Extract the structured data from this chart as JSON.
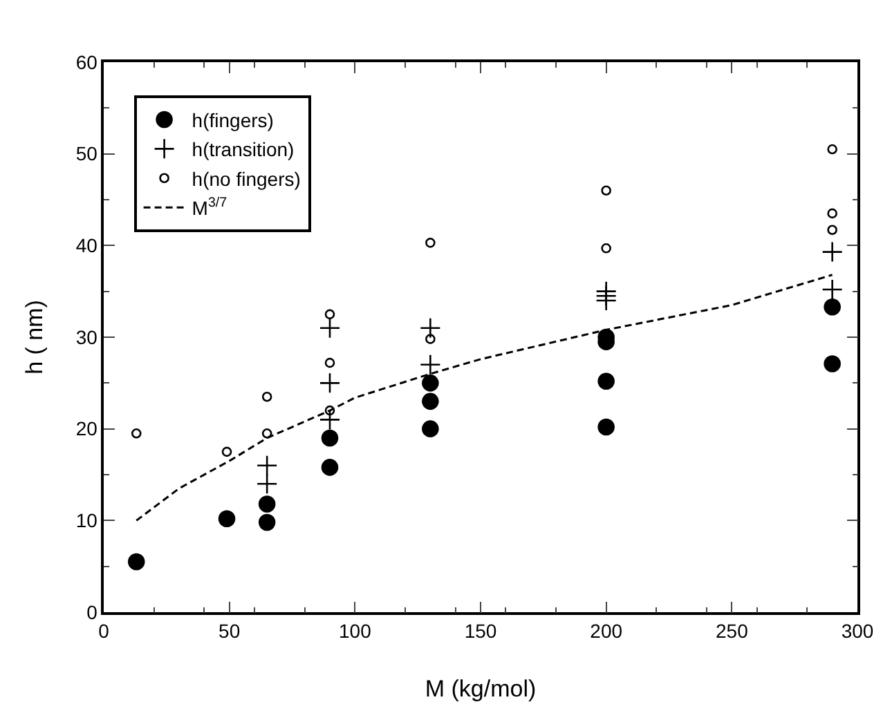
{
  "chart_data": {
    "type": "scatter",
    "xlabel": "M (kg/mol)",
    "ylabel": "h ( nm)",
    "xlim": [
      0,
      300
    ],
    "xticks": [
      0,
      50,
      100,
      150,
      200,
      250,
      300
    ],
    "ylim": [
      0,
      60
    ],
    "yticks": [
      0,
      10,
      20,
      30,
      40,
      50,
      60
    ],
    "grid": false,
    "legend": "top left",
    "series": [
      {
        "name": "h(fingers)",
        "marker": "circle",
        "color": "#000000",
        "x": [
          13,
          49,
          65,
          65,
          90,
          90,
          130,
          130,
          130,
          200,
          200,
          200,
          200,
          290,
          290
        ],
        "values": [
          5.5,
          10.2,
          11.8,
          9.8,
          19,
          15.8,
          25,
          23,
          20,
          30,
          29.5,
          25.2,
          20.2,
          33.3,
          27.1
        ]
      },
      {
        "name": "h(transition)",
        "marker": "cross",
        "color": "#000000",
        "x": [
          65,
          65,
          90,
          90,
          90,
          130,
          130,
          200,
          200,
          200,
          290,
          290
        ],
        "values": [
          16,
          14,
          31,
          25,
          21,
          31,
          27,
          35,
          34.5,
          34,
          39.3,
          35.2
        ]
      },
      {
        "name": "h(no fingers)",
        "marker": "circle-open",
        "color": "#000000",
        "x": [
          13,
          49,
          65,
          65,
          90,
          90,
          90,
          130,
          130,
          200,
          200,
          290,
          290,
          290
        ],
        "values": [
          19.5,
          17.5,
          23.5,
          19.5,
          32.5,
          27.2,
          22,
          40.3,
          29.8,
          46,
          39.7,
          50.5,
          43.5,
          41.7
        ]
      },
      {
        "name": "M$^{3/7}$",
        "type": "line",
        "marker": "none",
        "line_style": "dashed",
        "color": "#000000",
        "x": [
          13,
          30,
          50,
          65,
          90,
          100,
          130,
          150,
          200,
          250,
          290
        ],
        "values": [
          10,
          13.5,
          16.5,
          19,
          22,
          23.4,
          26,
          27.6,
          30.8,
          33.5,
          36.8
        ]
      }
    ]
  }
}
